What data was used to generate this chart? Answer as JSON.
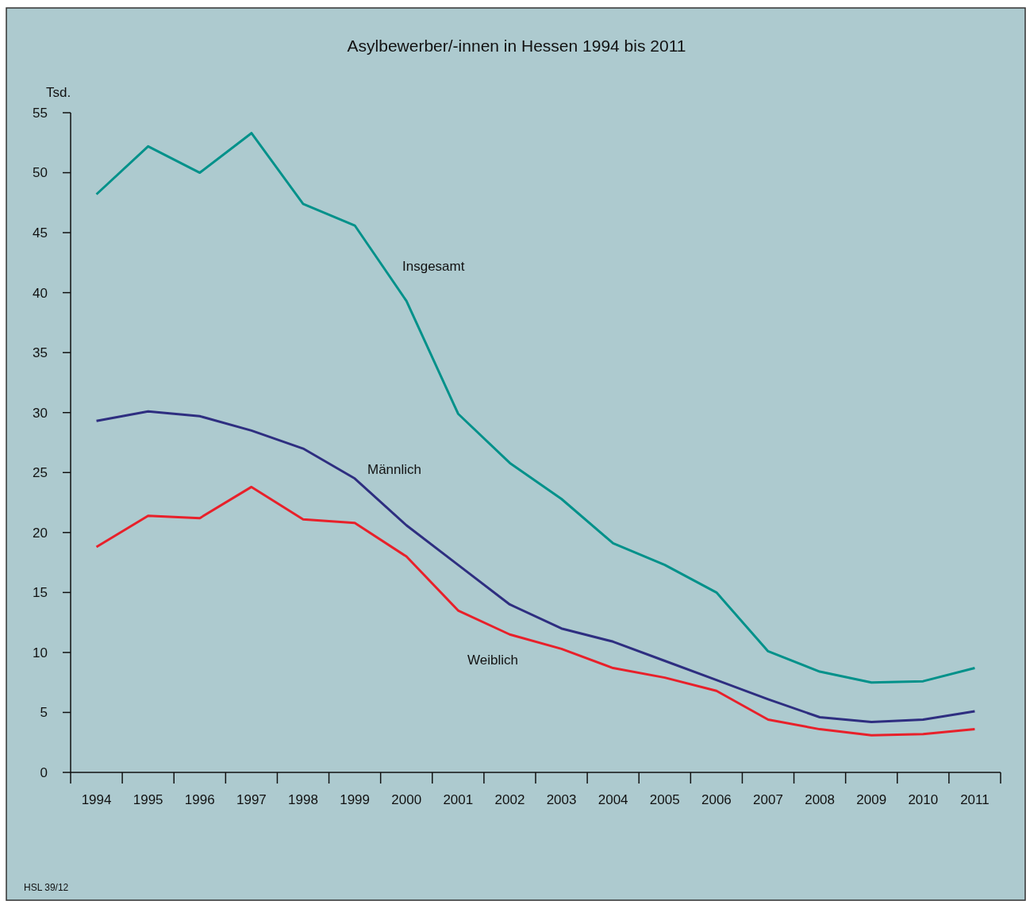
{
  "chart_data": {
    "type": "line",
    "title": "Asylbewerber/-innen in Hessen 1994 bis 2011",
    "ylabel": "Tsd.",
    "categories": [
      "1994",
      "1995",
      "1996",
      "1997",
      "1998",
      "1999",
      "2000",
      "2001",
      "2002",
      "2003",
      "2004",
      "2005",
      "2006",
      "2007",
      "2008",
      "2009",
      "2010",
      "2011"
    ],
    "ylim": [
      0,
      55
    ],
    "yticks": [
      0,
      5,
      10,
      15,
      20,
      25,
      30,
      35,
      40,
      45,
      50,
      55
    ],
    "grid": false,
    "legend": false,
    "marker": "none",
    "line_style": "solid",
    "series": [
      {
        "name": "Insgesamt",
        "color": "#00918a",
        "values": [
          48.2,
          52.2,
          50.0,
          53.3,
          47.4,
          45.6,
          39.3,
          29.9,
          25.8,
          22.8,
          19.1,
          17.3,
          15.0,
          10.1,
          8.4,
          7.5,
          7.6,
          8.7
        ]
      },
      {
        "name": "Männlich",
        "color": "#2e2e80",
        "values": [
          29.3,
          30.1,
          29.7,
          28.5,
          27.0,
          24.5,
          20.6,
          17.3,
          14.0,
          12.0,
          10.9,
          9.3,
          7.7,
          6.1,
          4.6,
          4.2,
          4.4,
          5.1
        ]
      },
      {
        "name": "Weiblich",
        "color": "#e8202a",
        "values": [
          18.8,
          21.4,
          21.2,
          23.8,
          21.1,
          20.8,
          18.0,
          13.5,
          11.5,
          10.3,
          8.7,
          7.9,
          6.8,
          4.4,
          3.6,
          3.1,
          3.2,
          3.6
        ]
      }
    ],
    "annotations": [
      "HSL 39/12"
    ]
  }
}
